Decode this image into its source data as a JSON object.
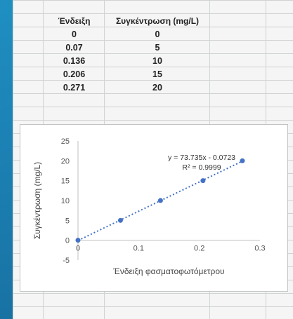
{
  "table": {
    "headers": [
      "Ένδειξη",
      "Συγκέντρωση (mg/L)"
    ],
    "rows": [
      [
        "0",
        "0"
      ],
      [
        "0.07",
        "5"
      ],
      [
        "0.136",
        "10"
      ],
      [
        "0.206",
        "15"
      ],
      [
        "0.271",
        "20"
      ]
    ]
  },
  "chart_data": {
    "type": "scatter",
    "x": [
      0,
      0.07,
      0.136,
      0.206,
      0.271
    ],
    "y": [
      0,
      5,
      10,
      15,
      20
    ],
    "trendline": {
      "type": "linear",
      "slope": 73.735,
      "intercept": -0.0723,
      "style": "dotted"
    },
    "equation": "y = 73.735x - 0.0723",
    "r_squared": "R² = 0.9999",
    "title": "",
    "xlabel": "Ένδειξη φασματοφωτόμετρου",
    "ylabel": "Συγκέντρωση (mg/L)",
    "xlim": [
      0,
      0.3
    ],
    "ylim": [
      -5,
      25
    ],
    "xticks": [
      "0",
      "0.1",
      "0.2",
      "0.3"
    ],
    "yticks": [
      "-5",
      "0",
      "5",
      "10",
      "15",
      "20",
      "25"
    ],
    "series_color": "#4472c4",
    "grid": false
  }
}
